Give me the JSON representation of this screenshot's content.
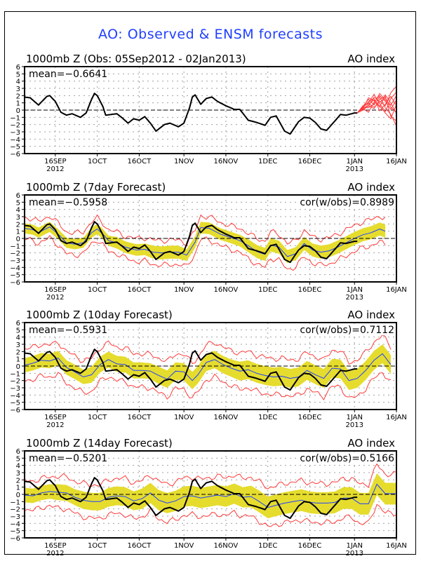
{
  "title": "AO: Observed & ENSM forecasts",
  "colors": {
    "title": "#1f3fff",
    "observed": "#000000",
    "ensemble_mean": "#2040ff",
    "ensemble_spread": "#e5dc2e",
    "ensemble_members": "#ff3b3b",
    "grid": "#a0a0a0"
  },
  "chart_data": [
    {
      "type": "line",
      "title": "1000mb Z (Obs: 05Sep2012 - 02Jan2013)",
      "right_title": "AO index",
      "stat_label": "mean=-0.6641",
      "x_start": "2012-09-05",
      "x_end": "2013-01-16",
      "xticks": [
        {
          "day": 11,
          "label": "16SEP",
          "sub": "2012"
        },
        {
          "day": 26,
          "label": "1OCT",
          "sub": ""
        },
        {
          "day": 41,
          "label": "16OCT",
          "sub": ""
        },
        {
          "day": 57,
          "label": "1NOV",
          "sub": ""
        },
        {
          "day": 72,
          "label": "16NOV",
          "sub": ""
        },
        {
          "day": 87,
          "label": "1DEC",
          "sub": ""
        },
        {
          "day": 102,
          "label": "16DEC",
          "sub": ""
        },
        {
          "day": 118,
          "label": "1JAN",
          "sub": "2013"
        },
        {
          "day": 133,
          "label": "16JAN",
          "sub": ""
        }
      ],
      "ylim": [
        -6,
        6
      ],
      "yticks": [
        -6,
        -5,
        -4,
        -3,
        -2,
        -1,
        0,
        1,
        2,
        3,
        4,
        5,
        6
      ],
      "observed": "obs",
      "members_from_day": 119
    },
    {
      "type": "line",
      "title": "1000mb Z (7day Forecast)",
      "right_title": "AO index",
      "stat_label": "mean=-0.5958",
      "stat_right": "cor(w/obs)=0.8989",
      "lead": 7,
      "ylim": [
        -6,
        6
      ]
    },
    {
      "type": "line",
      "title": "1000mb Z (10day Forecast)",
      "right_title": "AO index",
      "stat_label": "mean=-0.5931",
      "stat_right": "cor(w/obs)=0.7112",
      "lead": 10,
      "ylim": [
        -6,
        6
      ]
    },
    {
      "type": "line",
      "title": "1000mb Z (14day Forecast)",
      "right_title": "AO index",
      "stat_label": "mean=-0.5201",
      "stat_right": "cor(w/obs)=0.5166",
      "lead": 14,
      "ylim": [
        -6,
        6
      ]
    }
  ],
  "obs": {
    "days": [
      0,
      2,
      5,
      8,
      9,
      11,
      13,
      15,
      17,
      20,
      22,
      24,
      25,
      26,
      28,
      29,
      33,
      35,
      37,
      39,
      41,
      43,
      45,
      47,
      50,
      52,
      55,
      57,
      59,
      60,
      61,
      63,
      65,
      67,
      69,
      72,
      75,
      77,
      80,
      83,
      86,
      88,
      90,
      93,
      95,
      98,
      100,
      102,
      104,
      106,
      108,
      111,
      113,
      115,
      118,
      119
    ],
    "values": [
      1.8,
      1.7,
      0.7,
      1.9,
      2.0,
      1.2,
      -0.3,
      -0.7,
      -0.5,
      -1.0,
      -0.4,
      1.5,
      2.3,
      2.0,
      0.5,
      -0.7,
      -0.5,
      -1.1,
      -1.8,
      -1.2,
      -1.4,
      -0.9,
      -1.8,
      -2.9,
      -2.0,
      -1.8,
      -2.3,
      -1.8,
      0.3,
      1.8,
      2.1,
      0.8,
      1.6,
      1.8,
      1.2,
      0.6,
      0.1,
      0.1,
      -1.4,
      -1.7,
      -2.1,
      -1.0,
      -0.8,
      -2.9,
      -3.3,
      -1.6,
      -1.0,
      -1.1,
      -1.7,
      -2.6,
      -2.8,
      -1.5,
      -0.6,
      -0.7,
      -0.4,
      -0.4
    ]
  },
  "forecasts": {
    "7": {
      "days": [
        0,
        3,
        5,
        9,
        12,
        15,
        18,
        21,
        24,
        26,
        28,
        30,
        33,
        36,
        40,
        43,
        46,
        49,
        52,
        55,
        58,
        61,
        63,
        66,
        70,
        74,
        77,
        80,
        83,
        86,
        88,
        91,
        94,
        97,
        100,
        103,
        106,
        109,
        112,
        115,
        118,
        121,
        124,
        127,
        129
      ],
      "mean": [
        1.4,
        1.2,
        0.8,
        1.6,
        0.6,
        -0.6,
        -0.8,
        -0.6,
        0.8,
        1.3,
        0.6,
        -0.3,
        -0.6,
        -1.2,
        -1.6,
        -1.5,
        -1.9,
        -2.0,
        -1.9,
        -1.9,
        -2.3,
        -0.5,
        1.5,
        1.4,
        0.6,
        0.1,
        -0.3,
        -1.0,
        -1.8,
        -2.2,
        -0.9,
        -1.2,
        -2.5,
        -2.1,
        -0.7,
        -1.6,
        -1.9,
        -1.7,
        -1.2,
        -0.6,
        0.0,
        0.5,
        0.8,
        1.3,
        1.0
      ],
      "spread": [
        0.7,
        0.7,
        0.7,
        0.7,
        0.7,
        0.7,
        0.7,
        0.7,
        0.7,
        0.7,
        0.7,
        0.7,
        0.8,
        0.8,
        0.8,
        0.8,
        0.9,
        0.9,
        0.9,
        0.9,
        0.8,
        0.8,
        0.8,
        0.8,
        0.8,
        0.8,
        0.8,
        0.9,
        0.9,
        0.9,
        0.9,
        0.9,
        0.9,
        0.9,
        0.9,
        0.9,
        0.9,
        0.9,
        0.9,
        0.9,
        0.9,
        0.9,
        0.9,
        0.9,
        0.9
      ],
      "range": [
        1.5,
        1.5,
        1.5,
        1.5,
        1.5,
        1.5,
        1.5,
        1.5,
        1.5,
        1.5,
        1.5,
        1.5,
        1.5,
        1.5,
        1.6,
        1.6,
        1.7,
        1.7,
        1.7,
        1.7,
        1.6,
        1.6,
        1.6,
        1.6,
        1.6,
        1.6,
        1.7,
        1.7,
        1.8,
        1.8,
        1.8,
        1.8,
        1.8,
        1.8,
        1.8,
        1.8,
        1.8,
        1.8,
        1.8,
        1.8,
        1.8,
        1.8,
        1.8,
        1.8,
        1.8
      ]
    },
    "10": {
      "days": [
        0,
        3,
        6,
        9,
        12,
        15,
        18,
        21,
        24,
        27,
        30,
        33,
        36,
        39,
        42,
        45,
        48,
        51,
        54,
        57,
        60,
        62,
        65,
        68,
        71,
        74,
        77,
        80,
        83,
        86,
        89,
        92,
        95,
        98,
        101,
        104,
        107,
        110,
        113,
        116,
        119,
        122,
        125,
        128,
        131
      ],
      "mean": [
        0.1,
        0.4,
        0.8,
        0.7,
        1.1,
        -0.2,
        -0.8,
        -1.5,
        -1.2,
        0.2,
        0.9,
        0.3,
        0.2,
        -0.6,
        -0.6,
        -0.7,
        -1.3,
        -1.8,
        -0.7,
        -0.8,
        -2.0,
        -1.2,
        0.5,
        0.9,
        0.2,
        -0.3,
        -0.7,
        -0.5,
        -1.0,
        -1.3,
        -1.5,
        -1.4,
        -1.7,
        -1.5,
        -0.6,
        -1.2,
        -1.7,
        -0.3,
        -0.4,
        -2.0,
        -1.7,
        -0.6,
        0.8,
        1.7,
        0.2
      ],
      "spread": [
        1.0,
        1.0,
        1.0,
        1.0,
        1.0,
        1.0,
        1.0,
        1.0,
        1.1,
        1.1,
        1.1,
        1.1,
        1.1,
        1.1,
        1.1,
        1.1,
        1.2,
        1.2,
        1.2,
        1.2,
        1.2,
        1.2,
        1.2,
        1.2,
        1.2,
        1.2,
        1.3,
        1.3,
        1.3,
        1.3,
        1.3,
        1.3,
        1.3,
        1.3,
        1.3,
        1.3,
        1.3,
        1.3,
        1.3,
        1.3,
        1.3,
        1.3,
        1.3,
        1.3,
        1.3
      ],
      "range": [
        2.2,
        2.2,
        2.2,
        2.2,
        2.2,
        2.2,
        2.2,
        2.2,
        2.3,
        2.3,
        2.3,
        2.3,
        2.3,
        2.3,
        2.3,
        2.3,
        2.4,
        2.4,
        2.4,
        2.4,
        2.4,
        2.4,
        2.4,
        2.4,
        2.4,
        2.4,
        2.5,
        2.5,
        2.5,
        2.5,
        2.5,
        2.5,
        2.5,
        2.5,
        2.5,
        2.5,
        2.5,
        2.5,
        2.5,
        2.5,
        2.5,
        2.5,
        2.5,
        2.5,
        2.5
      ]
    },
    "14": {
      "days": [
        0,
        3,
        6,
        9,
        12,
        15,
        18,
        21,
        24,
        27,
        30,
        33,
        36,
        39,
        42,
        45,
        48,
        51,
        54,
        57,
        60,
        63,
        66,
        69,
        72,
        75,
        78,
        81,
        84,
        87,
        90,
        93,
        96,
        99,
        102,
        105,
        108,
        111,
        114,
        117,
        120,
        123,
        126,
        129,
        133
      ],
      "mean": [
        -0.1,
        -0.2,
        0.2,
        0.4,
        0.3,
        0.2,
        -0.4,
        -0.8,
        -1.0,
        -1.0,
        -0.4,
        -0.2,
        -0.3,
        -0.9,
        -0.6,
        0.2,
        -0.8,
        -1.2,
        -0.9,
        -0.3,
        -0.2,
        -0.5,
        -0.3,
        -0.1,
        -0.3,
        0.1,
        -0.4,
        -0.3,
        -1.0,
        -1.8,
        -1.5,
        -1.2,
        -1.0,
        -0.8,
        -1.1,
        -1.2,
        -1.2,
        -1.1,
        -0.5,
        -0.5,
        -1.3,
        -1.3,
        1.4,
        0.1,
        0.1
      ],
      "spread": [
        1.0,
        1.0,
        1.0,
        1.0,
        1.1,
        1.1,
        1.1,
        1.2,
        1.2,
        1.2,
        1.3,
        1.3,
        1.3,
        1.3,
        1.4,
        1.4,
        1.4,
        1.4,
        1.4,
        1.4,
        1.4,
        1.4,
        1.4,
        1.4,
        1.4,
        1.4,
        1.4,
        1.5,
        1.5,
        1.5,
        1.5,
        1.5,
        1.5,
        1.5,
        1.5,
        1.5,
        1.5,
        1.5,
        1.5,
        1.5,
        1.5,
        1.5,
        1.5,
        1.5,
        1.5
      ],
      "range": [
        2.0,
        2.0,
        2.0,
        2.0,
        2.2,
        2.2,
        2.2,
        2.3,
        2.3,
        2.3,
        2.4,
        2.4,
        2.5,
        2.5,
        2.5,
        2.5,
        2.6,
        2.6,
        2.6,
        2.6,
        2.6,
        2.6,
        2.6,
        2.6,
        2.6,
        2.6,
        2.6,
        2.7,
        2.7,
        2.7,
        2.7,
        2.7,
        2.7,
        2.7,
        2.7,
        2.7,
        2.7,
        2.7,
        2.7,
        2.7,
        2.7,
        2.7,
        2.7,
        2.7,
        2.7
      ]
    }
  },
  "obs_members": {
    "days": [
      119,
      121,
      123,
      125,
      127,
      129,
      131,
      133
    ],
    "members": [
      [
        -0.4,
        0.3,
        0.5,
        1.8,
        1.2,
        0.6,
        2.4,
        3.3
      ],
      [
        -0.4,
        0.1,
        0.8,
        1.4,
        0.4,
        2.1,
        1.0,
        -0.5
      ],
      [
        -0.4,
        0.5,
        1.5,
        0.7,
        1.8,
        0.3,
        -0.6,
        -2.2
      ],
      [
        -0.4,
        0.2,
        -0.3,
        1.1,
        2.0,
        1.2,
        0.1,
        1.4
      ],
      [
        -0.4,
        0.4,
        1.0,
        2.2,
        0.9,
        -0.2,
        1.6,
        2.5
      ],
      [
        -0.4,
        0.0,
        0.6,
        0.2,
        1.5,
        1.9,
        -0.9,
        -1.5
      ],
      [
        -0.4,
        0.3,
        1.2,
        1.6,
        -0.1,
        0.8,
        1.9,
        0.6
      ],
      [
        -0.4,
        0.6,
        0.9,
        0.4,
        1.1,
        1.7,
        0.4,
        -0.3
      ],
      [
        -0.4,
        0.2,
        1.7,
        1.3,
        0.6,
        -0.4,
        -1.2,
        0.8
      ],
      [
        -0.4,
        0.4,
        0.3,
        0.9,
        2.3,
        1.4,
        0.7,
        2.0
      ]
    ]
  }
}
